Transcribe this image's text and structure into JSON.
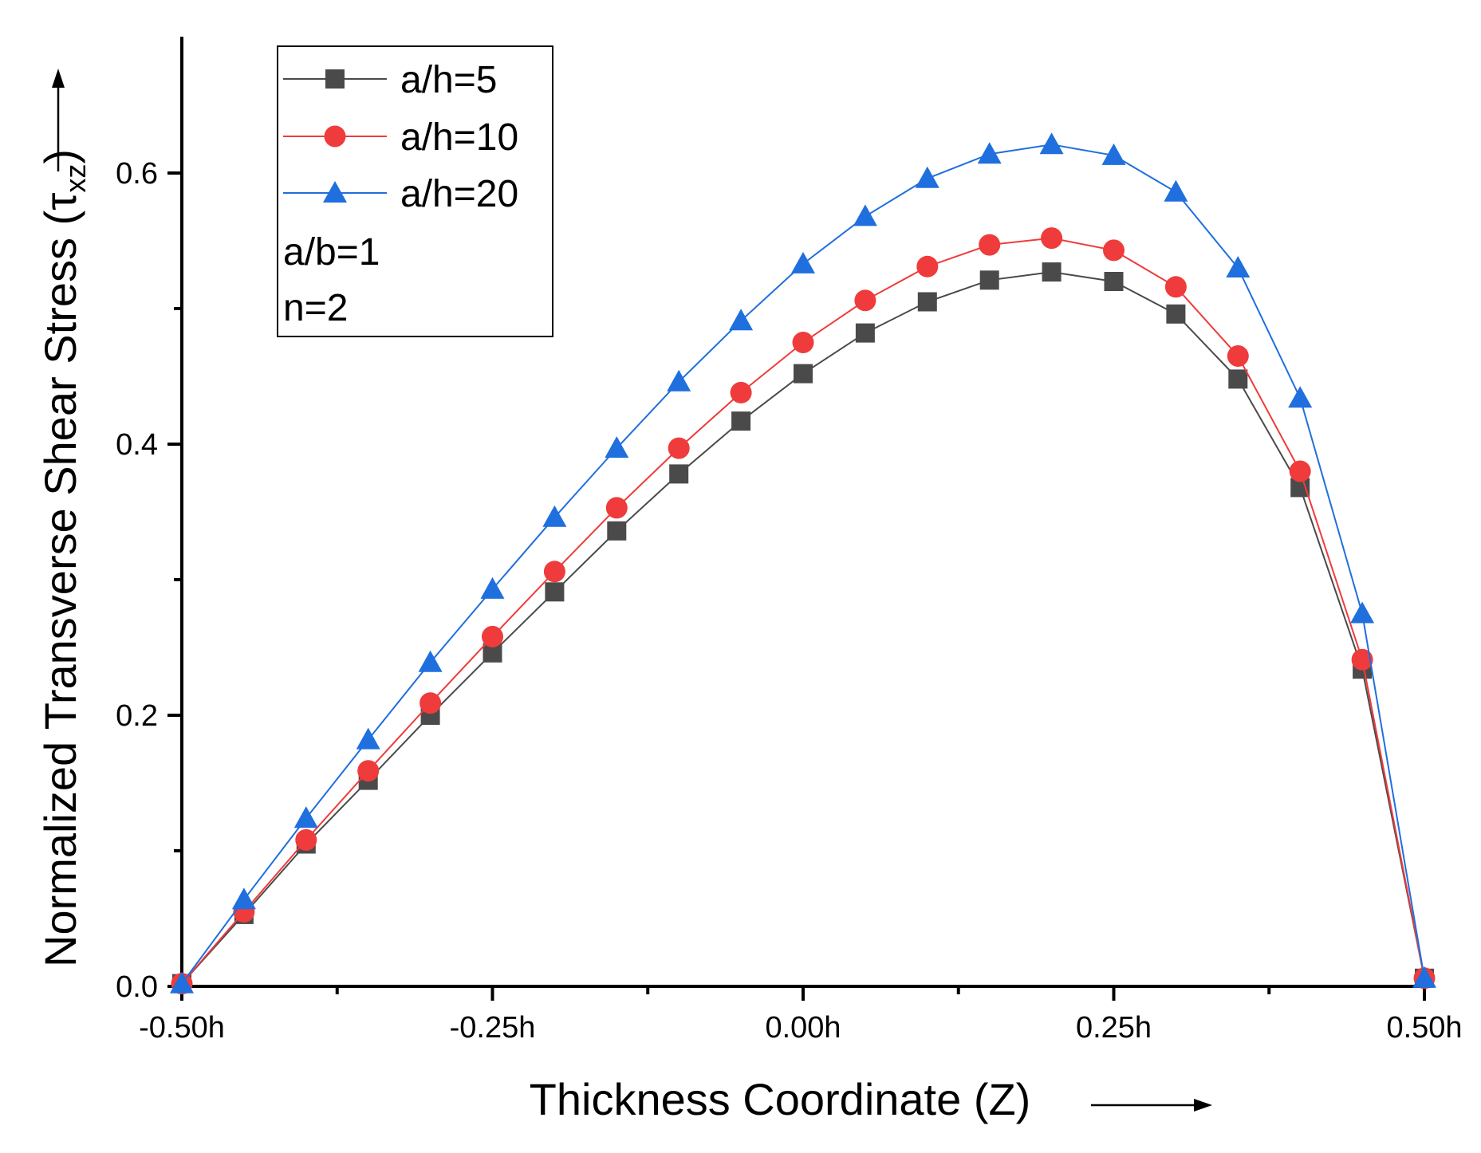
{
  "chart_data": {
    "type": "line",
    "title": "",
    "xlabel": "Thickness Coordinate (Z)",
    "ylabel_main": "Normalized Transverse Shear Stress (",
    "ylabel_symbol": "τ",
    "ylabel_sub": "xz",
    "ylabel_close": ")",
    "x": [
      -0.5,
      -0.45,
      -0.4,
      -0.35,
      -0.3,
      -0.25,
      -0.2,
      -0.15,
      -0.1,
      -0.05,
      0.0,
      0.05,
      0.1,
      0.15,
      0.2,
      0.25,
      0.3,
      0.35,
      0.4,
      0.45,
      0.5
    ],
    "xlim": [
      -0.5,
      0.5
    ],
    "ylim": [
      0,
      0.7
    ],
    "xticks": [
      -0.5,
      -0.25,
      0.0,
      0.25,
      0.5
    ],
    "xtick_labels": [
      "-0.50h",
      "-0.25h",
      "0.00h",
      "0.25h",
      "0.50h"
    ],
    "xminor": [
      -0.375,
      -0.125,
      0.125,
      0.375
    ],
    "yticks": [
      0.0,
      0.2,
      0.4,
      0.6
    ],
    "ytick_labels": [
      "0.0",
      "0.2",
      "0.4",
      "0.6"
    ],
    "yminor": [
      0.1,
      0.3,
      0.5
    ],
    "grid": false,
    "series": [
      {
        "name": "a/h=5",
        "color": "#4a4a4a",
        "marker": "square",
        "values": [
          0.002,
          0.053,
          0.105,
          0.152,
          0.2,
          0.246,
          0.291,
          0.336,
          0.378,
          0.417,
          0.452,
          0.482,
          0.505,
          0.521,
          0.527,
          0.52,
          0.496,
          0.448,
          0.368,
          0.234,
          0.006
        ]
      },
      {
        "name": "a/h=10",
        "color": "#ef3b3b",
        "marker": "circle",
        "values": [
          0.002,
          0.055,
          0.108,
          0.159,
          0.209,
          0.258,
          0.306,
          0.353,
          0.397,
          0.438,
          0.475,
          0.506,
          0.531,
          0.547,
          0.552,
          0.543,
          0.516,
          0.465,
          0.38,
          0.241,
          0.006
        ]
      },
      {
        "name": "a/h=20",
        "color": "#1f6fde",
        "marker": "triangle",
        "values": [
          0.002,
          0.064,
          0.124,
          0.182,
          0.239,
          0.293,
          0.346,
          0.397,
          0.446,
          0.491,
          0.533,
          0.568,
          0.596,
          0.614,
          0.621,
          0.613,
          0.586,
          0.53,
          0.434,
          0.275,
          0.006
        ]
      }
    ],
    "annotations": [
      "a/b=1",
      "n=2"
    ],
    "legend_position": "top-left"
  }
}
